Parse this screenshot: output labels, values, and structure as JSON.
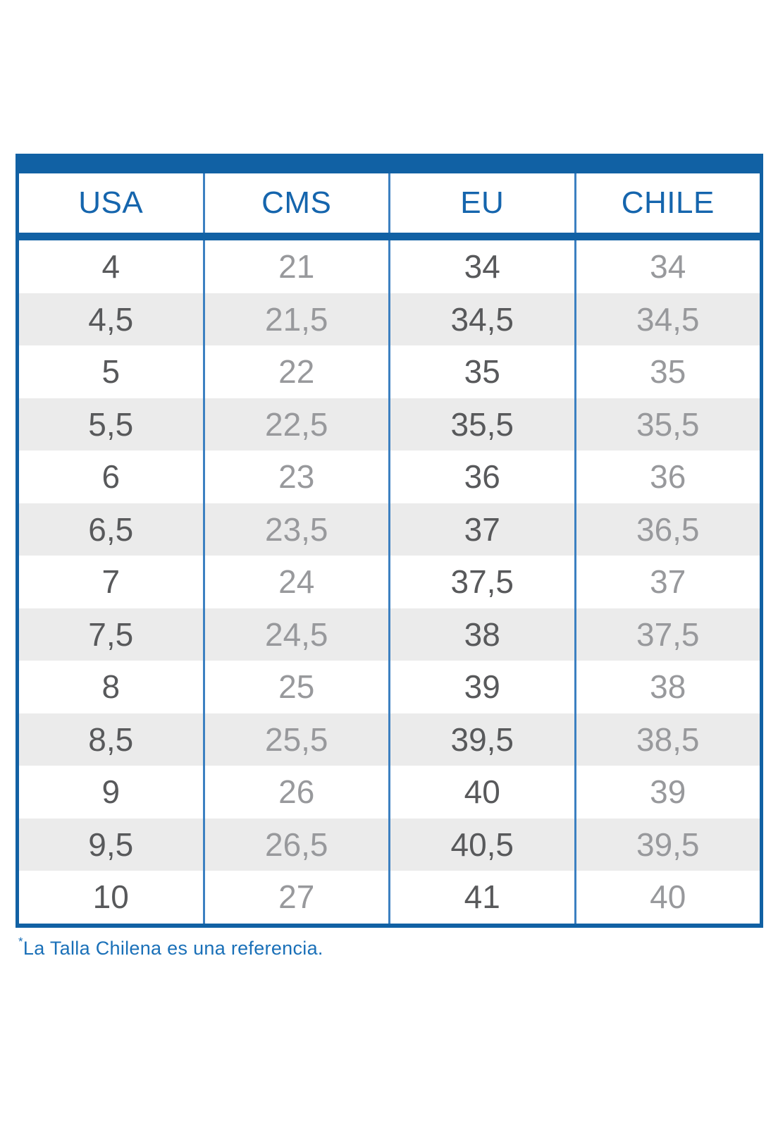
{
  "colors": {
    "blue": "#1161a4",
    "divider_blue": "#3c80c1",
    "header_text": "#1565ad",
    "dark_text": "#58595b",
    "light_text": "#98999c",
    "stripe": "#ebebeb",
    "footnote_blue": "#1a70b8",
    "bg": "#ffffff"
  },
  "chart_data": {
    "type": "table",
    "columns": [
      "USA",
      "CMS",
      "EU",
      "CHILE"
    ],
    "rows": [
      [
        "4",
        "21",
        "34",
        "34"
      ],
      [
        "4,5",
        "21,5",
        "34,5",
        "34,5"
      ],
      [
        "5",
        "22",
        "35",
        "35"
      ],
      [
        "5,5",
        "22,5",
        "35,5",
        "35,5"
      ],
      [
        "6",
        "23",
        "36",
        "36"
      ],
      [
        "6,5",
        "23,5",
        "37",
        "36,5"
      ],
      [
        "7",
        "24",
        "37,5",
        "37"
      ],
      [
        "7,5",
        "24,5",
        "38",
        "37,5"
      ],
      [
        "8",
        "25",
        "39",
        "38"
      ],
      [
        "8,5",
        "25,5",
        "39,5",
        "38,5"
      ],
      [
        "9",
        "26",
        "40",
        "39"
      ],
      [
        "9,5",
        "26,5",
        "40,5",
        "39,5"
      ],
      [
        "10",
        "27",
        "41",
        "40"
      ]
    ]
  },
  "footnote": {
    "marker": "*",
    "text": "La Talla Chilena es una referencia."
  }
}
